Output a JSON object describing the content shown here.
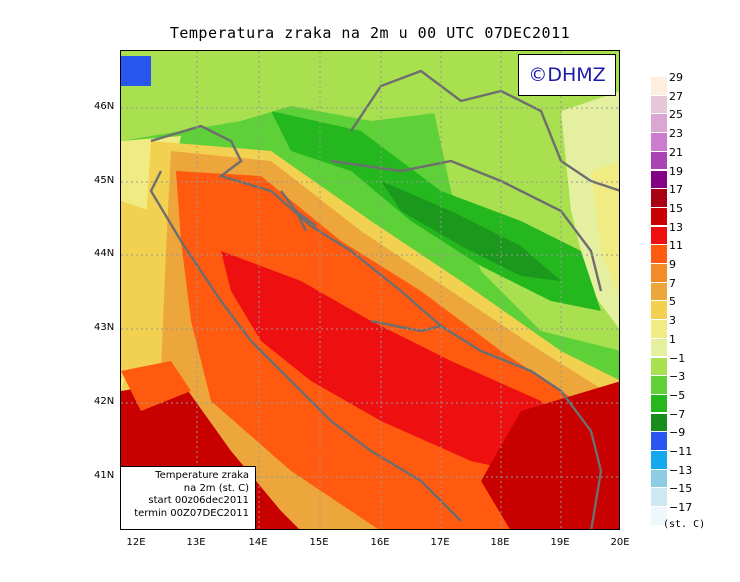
{
  "title": "Temperatura zraka na 2m u 00 UTC 07DEC2011",
  "logo": "©DHMZ",
  "infobox": {
    "line1": "Temperature zraka",
    "line2": "na 2m (st. C)",
    "line3": "start 00z06dec2011",
    "line4": "termin 00Z07DEC2011"
  },
  "axes": {
    "lat_labels": [
      "46N",
      "45N",
      "44N",
      "43N",
      "42N",
      "41N"
    ],
    "lon_labels": [
      "12E",
      "13E",
      "14E",
      "15E",
      "16E",
      "17E",
      "18E",
      "19E",
      "20E"
    ]
  },
  "legend": {
    "unit": "(st. C)",
    "labels": [
      "29",
      "27",
      "25",
      "23",
      "21",
      "19",
      "17",
      "15",
      "13",
      "11",
      "9",
      "7",
      "5",
      "3",
      "1",
      "−1",
      "−3",
      "−5",
      "−7",
      "−9",
      "−11",
      "−13",
      "−15",
      "−17"
    ],
    "colors": [
      "#fdeee0",
      "#e6c8d8",
      "#dca6d2",
      "#cc7ccc",
      "#aa44b4",
      "#840084",
      "#aa0014",
      "#c80000",
      "#ee1010",
      "#ff5a10",
      "#f58a28",
      "#eda63c",
      "#f2d050",
      "#f0eb82",
      "#e4f0a0",
      "#a8e050",
      "#5ed038",
      "#24b81e",
      "#188c1c",
      "#2856ee",
      "#16a8ec",
      "#8ccce4",
      "#cce8f0",
      "#eef8fc"
    ]
  },
  "palette": {
    "hot_core": "#ee1010",
    "warm_coast": "#ff5a10",
    "cold_inland": "#24b81e",
    "border_line": "#6e6e6e"
  }
}
